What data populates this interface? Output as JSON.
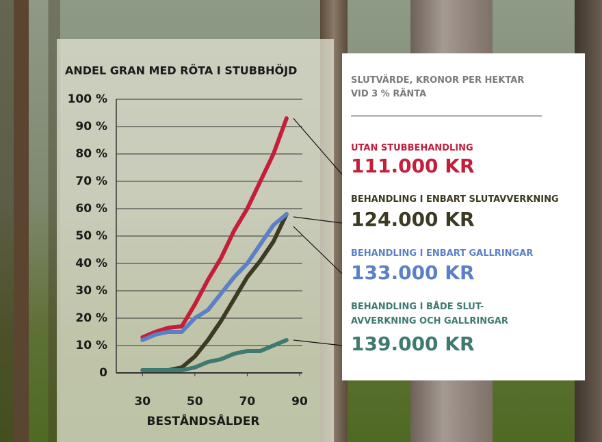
{
  "chart_data": {
    "type": "line",
    "title": "ANDEL GRAN MED RÖTA I STUBBHÖJD",
    "x_label": "BESTÅNDSÅLDER",
    "x": [
      30,
      35,
      40,
      45,
      50,
      55,
      60,
      65,
      70,
      75,
      80,
      85
    ],
    "xlim": [
      20,
      90
    ],
    "xticks": [
      30,
      50,
      70,
      90
    ],
    "ylim": [
      0,
      100
    ],
    "yticks": [
      0,
      {
        "value": 10,
        "label": "10 %"
      },
      {
        "value": 20,
        "label": "20 %"
      },
      {
        "value": 30,
        "label": "30 %"
      },
      {
        "value": 40,
        "label": "40 %"
      },
      {
        "value": 50,
        "label": "50 %"
      },
      {
        "value": 60,
        "label": "60 %"
      },
      {
        "value": 70,
        "label": "70 %"
      },
      {
        "value": 80,
        "label": "80 %"
      },
      {
        "value": 90,
        "label": "90 %"
      },
      {
        "value": 100,
        "label": "100 %"
      }
    ],
    "grid": true,
    "panel_title": [
      "SLUTVÄRDE, KRONOR PER HEKTAR",
      "VID 3 % RÄNTA"
    ],
    "series": [
      {
        "name": "UTAN STUBBEHANDLING",
        "result": "111.000 KR",
        "color": "#c41f3a",
        "values": [
          13,
          15,
          16.5,
          17,
          25,
          34,
          42,
          52,
          60,
          70,
          80,
          93
        ]
      },
      {
        "name": "BEHANDLING I ENBART SLUTAVVERKNING",
        "result": "124.000 KR",
        "color": "#3c3a22",
        "values": [
          1,
          1,
          1,
          2,
          6,
          12,
          19,
          27,
          35,
          41,
          48,
          58
        ]
      },
      {
        "name": "BEHANDLING I ENBART GALLRINGAR",
        "result": "133.000 KR",
        "color": "#5b80c6",
        "values": [
          12,
          14,
          15,
          15,
          20,
          23,
          29,
          35,
          40,
          47,
          54,
          58
        ]
      },
      {
        "name": "BEHANDLING I BÅDE SLUT-\nAVVERKNING OCH GALLRINGAR",
        "result": "139.000 KR",
        "color": "#3f7a70",
        "values": [
          1,
          1,
          1,
          1,
          2,
          4,
          5,
          7,
          8,
          8,
          10,
          12
        ]
      }
    ]
  }
}
